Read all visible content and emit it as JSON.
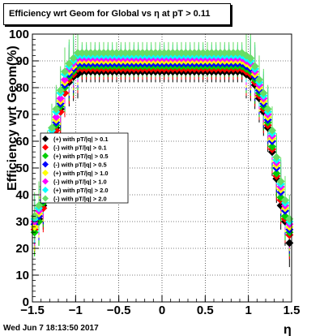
{
  "header": {
    "title": "Efficiency wrt Geom for Global vs   η at pT > 0.11"
  },
  "footer": {
    "timestamp": "Wed Jun  7 18:13:50 2017"
  },
  "chart_data": {
    "type": "scatter",
    "title": "Efficiency wrt Geom for Global vs   η at pT > 0.11",
    "xlabel": "η",
    "ylabel": "Efficiency wrt Geom(%)",
    "xlim": [
      -1.5,
      1.5
    ],
    "ylim": [
      0,
      100
    ],
    "grid": true,
    "legend_position": "left-middle",
    "xticks": [
      "−1.5",
      "−1",
      "−0.5",
      "0",
      "0.5",
      "1",
      "1.5"
    ],
    "yticks": [
      "0",
      "10",
      "20",
      "30",
      "40",
      "50",
      "60",
      "70",
      "80",
      "90",
      "100"
    ],
    "x": [
      -1.475,
      -1.425,
      -1.375,
      -1.325,
      -1.275,
      -1.225,
      -1.175,
      -1.125,
      -1.075,
      -1.025,
      -0.975,
      -0.925,
      -0.875,
      -0.825,
      -0.775,
      -0.725,
      -0.675,
      -0.625,
      -0.575,
      -0.525,
      -0.475,
      -0.425,
      -0.375,
      -0.325,
      -0.275,
      -0.225,
      -0.175,
      -0.125,
      -0.075,
      -0.025,
      0.025,
      0.075,
      0.125,
      0.175,
      0.225,
      0.275,
      0.325,
      0.375,
      0.425,
      0.475,
      0.525,
      0.575,
      0.625,
      0.675,
      0.725,
      0.775,
      0.825,
      0.875,
      0.925,
      0.975,
      1.025,
      1.075,
      1.125,
      1.175,
      1.225,
      1.275,
      1.325,
      1.375,
      1.425,
      1.475
    ],
    "series": [
      {
        "name": "(+) with pT/|q| > 0.1",
        "color": "#000000",
        "values": [
          28,
          31,
          36,
          48,
          58,
          65,
          72,
          78,
          82,
          84,
          85,
          86,
          86,
          86,
          86,
          86,
          86,
          86,
          86,
          86,
          86,
          86,
          86,
          86,
          86,
          86,
          86,
          86,
          86,
          86,
          86,
          86,
          86,
          86,
          86,
          86,
          86,
          86,
          86,
          86,
          86,
          86,
          86,
          86,
          86,
          86,
          86,
          86,
          86,
          85,
          84,
          81,
          76,
          71,
          65,
          56,
          46,
          36,
          30,
          22
        ]
      },
      {
        "name": "(-) with pT/|q| > 0.1",
        "color": "#ff0000",
        "values": [
          27,
          30,
          35,
          46,
          56,
          64,
          71,
          78,
          83,
          85,
          87,
          87,
          87,
          87,
          87,
          87,
          87,
          87,
          87,
          87,
          87,
          87,
          87,
          87,
          87,
          87,
          87,
          87,
          87,
          87,
          87,
          87,
          87,
          87,
          87,
          87,
          87,
          87,
          87,
          87,
          87,
          87,
          87,
          87,
          87,
          87,
          87,
          87,
          87,
          86,
          85,
          82,
          77,
          72,
          66,
          57,
          47,
          38,
          31,
          25
        ]
      },
      {
        "name": "(+) with pT/|q| > 0.5",
        "color": "#00cc00",
        "values": [
          26,
          30,
          37,
          48,
          58,
          66,
          73,
          80,
          84,
          86,
          88,
          88,
          88,
          88,
          88,
          88,
          88,
          88,
          88,
          88,
          88,
          88,
          88,
          88,
          88,
          88,
          88,
          88,
          88,
          88,
          88,
          88,
          88,
          88,
          88,
          88,
          88,
          88,
          88,
          88,
          88,
          88,
          88,
          88,
          88,
          88,
          88,
          88,
          88,
          87,
          86,
          83,
          78,
          73,
          67,
          58,
          48,
          39,
          32,
          26
        ]
      },
      {
        "name": "(-) with pT/|q| > 0.5",
        "color": "#0000ff",
        "values": [
          29,
          32,
          38,
          50,
          60,
          67,
          74,
          81,
          85,
          87,
          89,
          89,
          89,
          89,
          89,
          89,
          89,
          89,
          89,
          89,
          89,
          89,
          89,
          89,
          89,
          89,
          89,
          89,
          89,
          89,
          89,
          89,
          89,
          89,
          89,
          89,
          89,
          89,
          89,
          89,
          89,
          89,
          89,
          89,
          89,
          89,
          89,
          89,
          89,
          88,
          87,
          84,
          79,
          74,
          68,
          60,
          50,
          41,
          34,
          27
        ]
      },
      {
        "name": "(+) with pT/|q| > 1.0",
        "color": "#ffff00",
        "values": [
          28,
          33,
          39,
          51,
          61,
          68,
          75,
          82,
          86,
          88,
          90,
          90,
          90,
          90,
          90,
          90,
          90,
          90,
          90,
          90,
          90,
          90,
          90,
          90,
          90,
          90,
          90,
          90,
          90,
          90,
          90,
          90,
          90,
          90,
          90,
          90,
          90,
          90,
          90,
          90,
          90,
          90,
          90,
          90,
          90,
          90,
          90,
          90,
          90,
          89,
          88,
          85,
          80,
          75,
          69,
          61,
          51,
          42,
          35,
          28
        ]
      },
      {
        "name": "(-) with pT/|q| > 1.0",
        "color": "#ff00ff",
        "values": [
          30,
          34,
          40,
          52,
          62,
          69,
          76,
          83,
          87,
          89,
          91,
          91,
          91,
          91,
          91,
          91,
          91,
          91,
          91,
          91,
          91,
          91,
          91,
          91,
          91,
          91,
          91,
          91,
          91,
          91,
          91,
          91,
          91,
          91,
          91,
          91,
          91,
          91,
          91,
          91,
          91,
          91,
          91,
          91,
          91,
          91,
          91,
          91,
          91,
          90,
          89,
          86,
          81,
          76,
          70,
          62,
          52,
          43,
          36,
          29
        ]
      },
      {
        "name": "(+) with pT/|q| > 2.0",
        "color": "#00ffff",
        "values": [
          31,
          35,
          42,
          54,
          64,
          71,
          78,
          85,
          88,
          90,
          92,
          92,
          92,
          92,
          92,
          92,
          92,
          92,
          92,
          92,
          92,
          92,
          92,
          92,
          92,
          92,
          92,
          92,
          92,
          92,
          92,
          92,
          92,
          92,
          92,
          92,
          92,
          92,
          92,
          92,
          92,
          92,
          92,
          92,
          92,
          92,
          92,
          92,
          92,
          91,
          90,
          87,
          82,
          77,
          71,
          63,
          53,
          44,
          37,
          30
        ]
      },
      {
        "name": "(-) with pT/|q| > 2.0",
        "color": "#66dd66",
        "values": [
          32,
          36,
          43,
          55,
          65,
          72,
          79,
          86,
          89,
          91,
          93,
          93,
          93,
          93,
          93,
          93,
          93,
          93,
          93,
          93,
          93,
          93,
          93,
          93,
          93,
          93,
          93,
          93,
          93,
          93,
          93,
          93,
          93,
          93,
          93,
          93,
          93,
          93,
          93,
          93,
          93,
          93,
          93,
          93,
          93,
          93,
          93,
          93,
          93,
          92,
          91,
          88,
          83,
          78,
          72,
          64,
          54,
          45,
          38,
          31
        ]
      }
    ]
  }
}
